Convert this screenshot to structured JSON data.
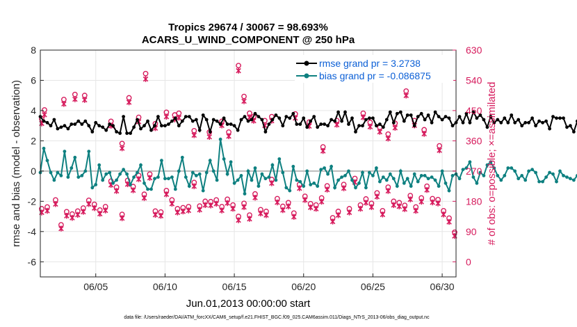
{
  "chart_data": {
    "type": "line",
    "title": "Tropics 29674 / 30067 = 98.693%",
    "subtitle": "ACARS_U_WIND_COMPONENT @ 250 hPa",
    "xlabel": "Jun.01,2013 00:00:00 start",
    "ylabel": "rmse and bias (model - observation)",
    "ylabel_right": "# of obs: o=possible; ×=assimilated",
    "footnote": "data file: /Users/raeder/DAI/ATM_forcXX/CAM6_setup/f.e21.FHIST_BGC.f09_025.CAM6assim.011/Diags_NTrS_2013-06/obs_diag_output.nc",
    "xlim": [
      1,
      31
    ],
    "ylim": [
      -7,
      8
    ],
    "ylim_right": [
      -45,
      630
    ],
    "x_ticks": [
      5,
      10,
      15,
      20,
      25,
      30
    ],
    "x_tick_labels": [
      "06/05",
      "06/10",
      "06/15",
      "06/20",
      "06/25",
      "06/30"
    ],
    "y_ticks": [
      -6,
      -4,
      -2,
      0,
      2,
      4,
      6,
      8
    ],
    "y_tick_labels": [
      "-6",
      "-4",
      "-2",
      "0",
      "2",
      "4",
      "6",
      "8"
    ],
    "y_right_ticks": [
      0,
      90,
      180,
      270,
      360,
      450,
      540,
      630
    ],
    "y_right_tick_labels": [
      "0",
      "90",
      "180",
      "270",
      "360",
      "450",
      "540",
      "630"
    ],
    "zero_line": 0,
    "x_step": 0.25,
    "series": [
      {
        "name": "rmse grand pr = 3.2738",
        "color": "#000000",
        "values": [
          3.6,
          3.3,
          3.2,
          3.0,
          3.4,
          2.8,
          2.9,
          3.0,
          2.8,
          3.1,
          3.1,
          3.3,
          3.1,
          3.3,
          3.0,
          2.6,
          3.2,
          3.0,
          2.9,
          2.7,
          3.1,
          3.0,
          2.6,
          2.5,
          3.6,
          2.5,
          2.5,
          2.9,
          3.4,
          2.8,
          3.0,
          3.3,
          2.7,
          3.0,
          3.6,
          3.0,
          3.0,
          3.1,
          3.3,
          3.5,
          3.0,
          3.3,
          3.6,
          3.6,
          3.3,
          3.4,
          2.7,
          3.7,
          3.4,
          2.6,
          3.4,
          3.3,
          3.1,
          3.5,
          3.1,
          3.1,
          3.0,
          2.7,
          3.4,
          3.6,
          3.3,
          3.4,
          3.8,
          3.6,
          3.4,
          2.6,
          3.1,
          3.4,
          3.7,
          3.5,
          3.0,
          3.6,
          3.5,
          3.8,
          3.1,
          3.1,
          3.5,
          2.9,
          3.3,
          3.6,
          2.9,
          3.1,
          3.1,
          3.0,
          3.4,
          3.3,
          3.9,
          3.3,
          3.9,
          3.1,
          3.5,
          2.6,
          3.0,
          3.0,
          3.4,
          3.5,
          3.5,
          3.0,
          3.1,
          2.9,
          3.4,
          3.9,
          3.2,
          3.8,
          3.9,
          3.3,
          3.7,
          3.7,
          3.0,
          3.6,
          3.8,
          3.4,
          3.7,
          3.2,
          3.9,
          3.6,
          3.4,
          3.6,
          3.5,
          3.0,
          3.2,
          3.6,
          3.2,
          3.8,
          3.2,
          3.9,
          3.5,
          3.7,
          3.4,
          2.9,
          3.6,
          3.2,
          3.4,
          3.2,
          3.5,
          3.2,
          3.7,
          3.2,
          3.4,
          3.0,
          3.2,
          3.2,
          3.5,
          3.0,
          3.3,
          3.2,
          3.3,
          2.8,
          3.6,
          3.5,
          3.5,
          3.5,
          2.9,
          3.0,
          2.6,
          3.3,
          3.1,
          3.1,
          3.6,
          3.2,
          3.6,
          3.8,
          3.4,
          3.5,
          3.0,
          3.6,
          3.5,
          3.5,
          3.3,
          3.4,
          3.2,
          3.0,
          3.6,
          3.1,
          3.1,
          2.8,
          3.2,
          3.0,
          2.8,
          3.2,
          3.1,
          3.0,
          3.1,
          2.8,
          2.9,
          3.1,
          3.0,
          2.7,
          3.2,
          3.7,
          3.0,
          3.3,
          3.7,
          3.3,
          2.8,
          3.3,
          3.7,
          3.5,
          3.7,
          3.7,
          3.5,
          3.4,
          3.1,
          3.3,
          3.2,
          3.0,
          3.4,
          3.1,
          3.1,
          3.0,
          3.0,
          3.0,
          3.5,
          3.1,
          3.3,
          3.5,
          3.3,
          3.5,
          3.0,
          3.7,
          3.1,
          3.6,
          3.4,
          3.1,
          3.6,
          3.5,
          3.5,
          3.6,
          3.1,
          3.5,
          3.2,
          3.4,
          3.5,
          3.8,
          3.8,
          3.0,
          3.6,
          3.3,
          3.3,
          3.6,
          3.6,
          3.2,
          3.4,
          3.6,
          3.1,
          3.2,
          3.2,
          3.0,
          2.9,
          3.0,
          3.4,
          3.7,
          3.4,
          3.5,
          3.0,
          3.3
        ]
      },
      {
        "name": "bias grand pr = -0.086875",
        "color": "#0e8080",
        "values": [
          -0.1,
          1.5,
          0.7,
          -0.1,
          -0.6,
          -0.1,
          -0.3,
          1.3,
          -0.4,
          0.2,
          0.9,
          -0.4,
          -0.3,
          0.0,
          1.3,
          -1.1,
          -0.9,
          0.4,
          -0.6,
          -0.2,
          -0.1,
          -0.8,
          -0.6,
          -0.2,
          0.1,
          -0.2,
          -0.9,
          -0.4,
          -0.1,
          0.4,
          -0.8,
          -1.2,
          -1.2,
          -0.5,
          -0.4,
          0.7,
          -0.5,
          -0.5,
          -0.4,
          -1.2,
          0.0,
          0.9,
          -0.4,
          -1.0,
          -0.1,
          -0.3,
          -0.2,
          -1.3,
          -0.1,
          0.7,
          0.0,
          -0.6,
          2.1,
          0.8,
          -0.2,
          0.6,
          -0.8,
          -0.6,
          -0.3,
          -1.5,
          0.0,
          -0.6,
          0.2,
          -1.0,
          -0.2,
          -0.5,
          -0.4,
          0.4,
          -0.6,
          0.8,
          -0.1,
          -1.1,
          -1.3,
          0.3,
          -0.6,
          -0.7,
          -1.0,
          0.0,
          -0.9,
          -0.8,
          -1.0,
          0.1,
          0.2,
          -0.2,
          0.3,
          -1.1,
          -0.6,
          -0.4,
          -0.3,
          0.0,
          -0.6,
          -1.1,
          -0.8,
          -0.1,
          -1.1,
          -0.1,
          -0.3,
          0.2,
          -0.7,
          -0.4,
          -0.6,
          -0.2,
          -0.5,
          -1.0,
          0.0,
          -0.8,
          -0.5,
          -1.0,
          -0.2,
          -0.7,
          -0.3,
          -0.3,
          -0.5,
          -0.4,
          -0.6,
          -1.0,
          0.0,
          -0.8,
          -1.3,
          -0.3,
          -0.2,
          -0.5,
          0.1,
          0.2,
          0.6,
          -0.4,
          -0.8,
          -0.1,
          -0.3,
          0.4,
          0.6,
          0.2,
          -0.3,
          -0.6,
          -0.3,
          0.2,
          0.2,
          0.0,
          -0.5,
          -0.3,
          -0.6,
          0.0,
          0.1,
          -0.1,
          -0.7,
          -0.7,
          -0.4,
          -0.1,
          -0.2,
          -0.7,
          0.0,
          -0.3,
          -0.4,
          -0.5,
          -0.6,
          -0.3,
          -0.7,
          0.1,
          -0.6,
          -0.2,
          0.1,
          -0.1,
          -0.5,
          0.1,
          -0.9,
          -0.4,
          -0.4,
          -0.7,
          -0.7,
          -0.6,
          -1.1,
          0.3,
          -0.9,
          -1.2,
          -0.6,
          0.0,
          -0.6,
          -0.1,
          0.2,
          -0.8,
          -0.7,
          -0.7,
          -1.1,
          -0.6,
          -1.3,
          0.0,
          -0.5,
          -0.6,
          -0.3,
          -0.1,
          -0.4,
          -0.5,
          -0.6,
          -1.1,
          0.0,
          0.7,
          -0.6,
          0.1,
          0.6,
          -0.1,
          0.7,
          0.3,
          -0.6,
          0.2,
          0.9,
          0.5,
          0.8,
          0.2,
          1.2,
          -0.4,
          -0.6,
          -0.1,
          0.4,
          -0.4,
          -0.6,
          0.6,
          0.3,
          -0.1,
          -0.5,
          -0.3,
          -0.9,
          -0.3,
          -0.6,
          -1.1,
          -0.4,
          -0.3,
          -0.7,
          -1.1,
          -0.5,
          -0.3,
          -0.5,
          -0.6,
          -0.9,
          0.0,
          -1.3,
          -1.2,
          -0.7,
          -0.4,
          -0.6,
          -0.9,
          -0.5,
          -0.2,
          -0.9,
          0.0,
          -0.6,
          -1.3,
          -1.0,
          -0.7
        ]
      }
    ],
    "obs_counts": {
      "name": "# of obs",
      "color": "#d61a5c",
      "x": [
        1.3,
        1.1,
        2.7,
        3.5,
        4.2,
        6.1,
        6.9,
        7.4,
        8.1,
        8.6,
        9.3,
        10.1,
        10.7,
        11.0,
        12.1,
        13.2,
        14.1,
        14.6,
        15.3,
        15.7,
        16.1,
        16.4,
        17.2,
        17.7,
        19.4,
        20.4,
        21.4,
        22.4,
        23.3,
        24.3,
        24.8,
        25.5,
        26.1,
        26.6,
        27.4,
        28.0,
        28.7,
        29.8,
        30.5,
        1.1,
        1.5,
        2.1,
        2.5,
        2.9,
        3.3,
        3.7,
        4.1,
        4.5,
        4.9,
        5.3,
        5.7,
        6.1,
        6.5,
        6.9,
        7.3,
        7.7,
        8.1,
        8.5,
        8.9,
        9.3,
        9.7,
        10.1,
        10.5,
        10.9,
        11.3,
        11.7,
        12.1,
        12.5,
        12.9,
        13.3,
        13.7,
        14.1,
        14.5,
        14.9,
        15.3,
        15.7,
        16.1,
        16.5,
        16.9,
        17.3,
        17.7,
        18.1,
        18.5,
        18.9,
        19.3,
        19.7,
        20.1,
        20.5,
        20.9,
        21.3,
        21.7,
        22.1,
        22.5,
        22.9,
        23.3,
        23.7,
        24.1,
        24.5,
        24.9,
        25.3,
        25.7,
        26.1,
        26.5,
        26.9,
        27.3,
        27.7,
        28.1,
        28.5,
        28.9,
        29.3,
        29.7,
        30.1,
        30.5,
        30.9
      ],
      "possible": [
        452,
        425,
        483,
        498,
        495,
        418,
        352,
        488,
        430,
        560,
        411,
        445,
        437,
        442,
        390,
        386,
        418,
        386,
        584,
        492,
        442,
        432,
        420,
        432,
        440,
        416,
        342,
        420,
        580,
        442,
        415,
        400,
        380,
        412,
        508,
        420,
        393,
        345,
        600,
        158,
        163,
        184,
        110,
        149,
        142,
        151,
        160,
        183,
        171,
        154,
        164,
        240,
        222,
        141,
        242,
        224,
        257,
        201,
        261,
        151,
        148,
        212,
        184,
        158,
        161,
        164,
        236,
        166,
        180,
        179,
        184,
        164,
        186,
        169,
        135,
        174,
        139,
        202,
        155,
        150,
        245,
        188,
        165,
        176,
        145,
        230,
        195,
        173,
        169,
        190,
        226,
        131,
        150,
        230,
        158,
        248,
        169,
        187,
        174,
        205,
        152,
        222,
        180,
        176,
        168,
        197,
        163,
        190,
        225,
        188,
        185,
        152,
        130,
        88,
        0
      ],
      "assimilated": [
        446,
        420,
        478,
        492,
        490,
        413,
        346,
        483,
        425,
        552,
        406,
        440,
        432,
        437,
        385,
        380,
        414,
        382,
        577,
        486,
        438,
        428,
        414,
        428,
        436,
        412,
        338,
        416,
        574,
        438,
        410,
        395,
        375,
        407,
        503,
        414,
        389,
        340,
        594,
        155,
        160,
        180,
        107,
        145,
        139,
        148,
        157,
        180,
        168,
        151,
        161,
        237,
        219,
        138,
        239,
        221,
        254,
        198,
        258,
        148,
        145,
        209,
        181,
        155,
        158,
        161,
        233,
        163,
        177,
        176,
        181,
        161,
        183,
        166,
        132,
        171,
        136,
        199,
        152,
        147,
        242,
        185,
        162,
        173,
        142,
        227,
        192,
        170,
        166,
        187,
        223,
        128,
        147,
        227,
        155,
        245,
        166,
        184,
        171,
        202,
        149,
        219,
        177,
        173,
        165,
        194,
        160,
        187,
        222,
        185,
        182,
        149,
        127,
        85,
        0
      ]
    }
  }
}
